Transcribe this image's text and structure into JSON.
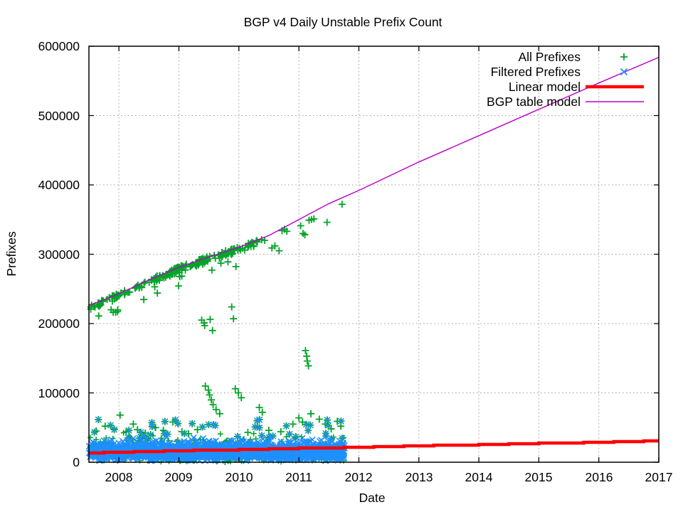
{
  "chart_data": {
    "type": "scatter",
    "title": "BGP v4 Daily Unstable Prefix Count",
    "xlabel": "Date",
    "ylabel": "Prefixes",
    "xlim": [
      2007.5,
      2017
    ],
    "ylim": [
      0,
      600000
    ],
    "x_ticks": [
      2008,
      2009,
      2010,
      2011,
      2012,
      2013,
      2014,
      2015,
      2016,
      2017
    ],
    "y_ticks": [
      0,
      100000,
      200000,
      300000,
      400000,
      500000,
      600000
    ],
    "grid": true,
    "colors": {
      "green": "#00a426",
      "blue": "#1e8fff",
      "red": "#ff0000",
      "purple": "#bb00cc",
      "grid_gray": "#9b9b9b",
      "axis_black": "#000000"
    },
    "legend": {
      "position": "top-right",
      "entries": [
        {
          "label": "All Prefixes",
          "type": "point",
          "marker": "+",
          "color": "#00a426"
        },
        {
          "label": "Filtered Prefixes",
          "type": "point",
          "marker": "x",
          "color": "#1e8fff"
        },
        {
          "label": "Linear model",
          "type": "line",
          "color": "#ff0000",
          "width": 4.5
        },
        {
          "label": "BGP table model",
          "type": "line",
          "color": "#bb00cc",
          "width": 1.5
        }
      ]
    },
    "series": {
      "bgp_table_model": {
        "name": "BGP table model",
        "color": "#bb00cc",
        "width": 1.4,
        "points": [
          [
            2007.5,
            226000
          ],
          [
            2008,
            243000
          ],
          [
            2008.5,
            263000
          ],
          [
            2009,
            281000
          ],
          [
            2009.5,
            296000
          ],
          [
            2010,
            310000
          ],
          [
            2010.5,
            327000
          ],
          [
            2011,
            350000
          ],
          [
            2011.5,
            373000
          ],
          [
            2012,
            392000
          ],
          [
            2013,
            433000
          ],
          [
            2014,
            471000
          ],
          [
            2015,
            509000
          ],
          [
            2016,
            547000
          ],
          [
            2017,
            584000
          ]
        ]
      },
      "linear_model": {
        "name": "Linear model",
        "color": "#ff0000",
        "width": 4.5,
        "stepped": true,
        "start": [
          2007.5,
          13800
        ],
        "end": [
          2017,
          30900
        ]
      },
      "all_prefixes": {
        "name": "All Prefixes",
        "marker": "+",
        "color": "#00a426",
        "curve_track": {
          "n_base": 95,
          "t_range": [
            2007.52,
            2010.32
          ],
          "clusters": [
            {
              "t": 2008.0,
              "sd": 0.1,
              "n": 16
            },
            {
              "t": 2008.62,
              "sd": 0.07,
              "n": 18
            },
            {
              "t": 2008.95,
              "sd": 0.06,
              "n": 26
            },
            {
              "t": 2009.4,
              "sd": 0.07,
              "n": 26
            },
            {
              "t": 2009.85,
              "sd": 0.08,
              "n": 24
            },
            {
              "t": 2010.15,
              "sd": 0.05,
              "n": 12
            }
          ],
          "offset_range": [
            -7500,
            1200
          ],
          "deep_frac": 0.08,
          "deep_extra": [
            -22000,
            -8000
          ]
        },
        "sparse_track": [
          [
            2010.38,
            321000
          ],
          [
            2010.43,
            320000
          ],
          [
            2010.55,
            309000
          ],
          [
            2010.6,
            312000
          ],
          [
            2010.67,
            305000
          ],
          [
            2010.72,
            334000
          ],
          [
            2010.76,
            336000
          ],
          [
            2010.8,
            333000
          ],
          [
            2011.03,
            341000
          ],
          [
            2011.07,
            330000
          ],
          [
            2011.1,
            328000
          ],
          [
            2011.17,
            349000
          ],
          [
            2011.21,
            350000
          ],
          [
            2011.25,
            351000
          ],
          [
            2011.47,
            346000
          ],
          [
            2011.72,
            372000
          ]
        ],
        "mid_outliers": [
          [
            2009.38,
            205000
          ],
          [
            2009.42,
            201000
          ],
          [
            2009.43,
            197000
          ],
          [
            2009.52,
            206000
          ],
          [
            2009.56,
            190000
          ],
          [
            2009.55,
            277000
          ],
          [
            2009.88,
            224000
          ],
          [
            2009.91,
            207000
          ],
          [
            2009.44,
            110000
          ],
          [
            2009.49,
            104000
          ],
          [
            2009.51,
            97000
          ],
          [
            2009.54,
            90000
          ],
          [
            2009.57,
            83000
          ],
          [
            2009.62,
            76000
          ],
          [
            2009.68,
            70000
          ],
          [
            2009.94,
            106000
          ],
          [
            2009.99,
            100000
          ],
          [
            2010.04,
            93000
          ],
          [
            2011.11,
            161000
          ],
          [
            2011.13,
            153000
          ],
          [
            2011.14,
            146000
          ],
          [
            2011.16,
            139000
          ],
          [
            2010.34,
            79000
          ],
          [
            2010.39,
            72000
          ]
        ],
        "high_outliers": [
          [
            2007.62,
            45000
          ],
          [
            2007.77,
            52000
          ],
          [
            2007.92,
            48000
          ],
          [
            2008.02,
            68000
          ],
          [
            2008.12,
            44000
          ],
          [
            2008.24,
            55000
          ],
          [
            2008.31,
            47000
          ],
          [
            2008.44,
            42000
          ],
          [
            2008.61,
            50000
          ],
          [
            2008.74,
            46000
          ],
          [
            2008.9,
            58000
          ],
          [
            2009.05,
            44000
          ],
          [
            2009.16,
            41000
          ],
          [
            2009.31,
            47000
          ],
          [
            2010.15,
            43000
          ],
          [
            2010.31,
            52000
          ],
          [
            2010.5,
            46000
          ],
          [
            2010.7,
            44000
          ],
          [
            2010.9,
            55000
          ],
          [
            2011.0,
            64000
          ],
          [
            2011.06,
            58000
          ],
          [
            2011.2,
            70000
          ],
          [
            2011.34,
            62000
          ],
          [
            2011.44,
            55000
          ],
          [
            2011.54,
            48000
          ],
          [
            2011.64,
            59000
          ],
          [
            2011.7,
            52000
          ]
        ],
        "low_outliers": [
          [
            2009.63,
            2000
          ],
          [
            2009.77,
            1000
          ],
          [
            2009.86,
            2500
          ]
        ],
        "band": {
          "n": 560,
          "t_range": [
            2007.5,
            2011.76
          ],
          "center": 15000,
          "sd": 9500,
          "clip": [
            600,
            44000
          ]
        }
      },
      "filtered_prefixes": {
        "name": "Filtered Prefixes",
        "marker": "x",
        "color": "#1e8fff",
        "band": {
          "n": 1750,
          "t_range": [
            2007.5,
            2011.76
          ],
          "center": 15200,
          "sd": 6800,
          "clip": [
            2200,
            36500
          ]
        },
        "joint_outliers": {
          "n": 46,
          "t_range": [
            2007.55,
            2011.73
          ],
          "v_range": [
            34000,
            62000
          ],
          "bias_pow": 1.6
        }
      }
    }
  }
}
